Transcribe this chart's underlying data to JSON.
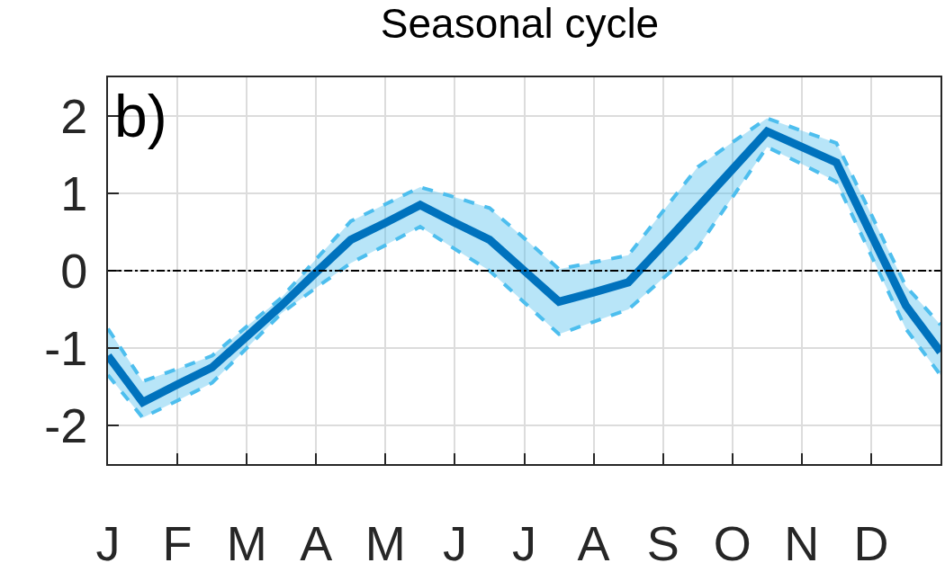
{
  "chart_data": {
    "type": "line",
    "title": "Seasonal cycle",
    "categories": [
      "J",
      null,
      "F",
      null,
      "M",
      null,
      "A",
      null,
      "M",
      null,
      "J",
      null,
      "J",
      null,
      "A",
      null,
      "S",
      null,
      "O",
      null,
      "N",
      null,
      "D",
      null,
      null
    ],
    "series": [
      {
        "color": "#0072bd",
        "values": [
          -1.1,
          -1.7,
          -1.47,
          -1.25,
          -0.85,
          -0.45,
          -0.02,
          0.4,
          0.62,
          0.85,
          0.62,
          0.4,
          0.0,
          -0.4,
          -0.28,
          -0.15,
          0.33,
          0.82,
          1.31,
          1.8,
          1.6,
          1.4,
          0.47,
          -0.45,
          -1.05
        ],
        "lower": [
          -1.35,
          -1.9,
          -1.68,
          -1.45,
          -1.0,
          -0.55,
          -0.22,
          0.1,
          0.33,
          0.57,
          0.28,
          0.0,
          -0.41,
          -0.82,
          -0.66,
          -0.5,
          -0.1,
          0.3,
          0.95,
          1.6,
          1.38,
          1.15,
          0.2,
          -0.75,
          -1.35
        ],
        "upper": [
          -0.75,
          -1.43,
          -1.27,
          -1.1,
          -0.72,
          -0.35,
          0.15,
          0.64,
          0.86,
          1.08,
          0.95,
          0.81,
          0.42,
          0.02,
          0.11,
          0.2,
          0.77,
          1.34,
          1.66,
          1.97,
          1.81,
          1.65,
          0.73,
          -0.2,
          -0.7
        ]
      },
      {
        "color": "#4dbeee",
        "line_style": "dashed",
        "values": [
          -0.75,
          -1.43,
          -1.27,
          -1.1,
          -0.72,
          -0.35,
          0.15,
          0.64,
          0.86,
          1.08,
          0.95,
          0.81,
          0.42,
          0.02,
          0.11,
          0.2,
          0.77,
          1.34,
          1.66,
          1.97,
          1.81,
          1.65,
          0.73,
          -0.2,
          -0.7
        ]
      },
      {
        "color": "#4dbeee",
        "line_style": "dashed",
        "values": [
          -1.35,
          -1.9,
          -1.68,
          -1.45,
          -1.0,
          -0.55,
          -0.22,
          0.1,
          0.33,
          0.57,
          0.28,
          0.0,
          -0.41,
          -0.82,
          -0.66,
          -0.5,
          -0.1,
          0.3,
          0.95,
          1.6,
          1.38,
          1.15,
          0.2,
          -0.75,
          -1.35
        ]
      }
    ],
    "ylim": [
      -2.5,
      2.5
    ],
    "yticks": [
      -2,
      -1,
      0,
      1,
      2
    ],
    "ref_lines": [
      {
        "axis": "y",
        "value": 0,
        "color": "#000000",
        "line_style": "dashed"
      }
    ],
    "annotations": [
      "b)"
    ],
    "grid": true,
    "marker": "none",
    "line_style": "solid"
  }
}
